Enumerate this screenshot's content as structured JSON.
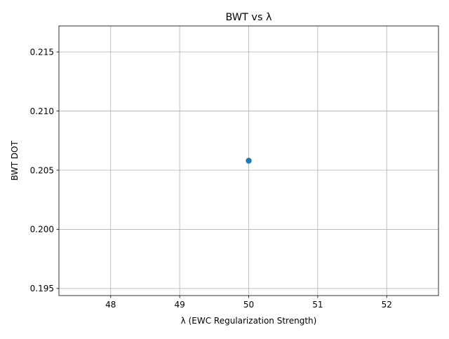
{
  "chart_data": {
    "type": "scatter",
    "title": "BWT vs λ",
    "xlabel": "λ (EWC Regularization Strength)",
    "ylabel": "BWT DOT",
    "xlim": [
      47.25,
      52.75
    ],
    "ylim": [
      0.1944,
      0.2172
    ],
    "xticks": [
      48,
      49,
      50,
      51,
      52
    ],
    "xtick_labels": [
      "48",
      "49",
      "50",
      "51",
      "52"
    ],
    "yticks": [
      0.195,
      0.2,
      0.205,
      0.21,
      0.215
    ],
    "ytick_labels": [
      "0.195",
      "0.200",
      "0.205",
      "0.210",
      "0.215"
    ],
    "grid": true,
    "legend": false,
    "series": [
      {
        "color": "#1f77b4",
        "marker": "circle",
        "points": [
          {
            "x": 50,
            "y": 0.2058
          }
        ]
      }
    ]
  }
}
